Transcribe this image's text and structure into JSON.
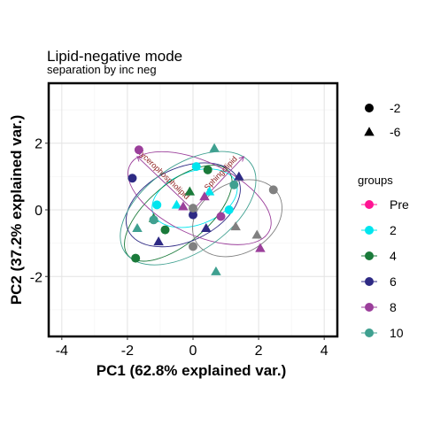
{
  "chart_data": {
    "type": "scatter",
    "title": "Lipid-negative mode",
    "subtitle": "separation by inc neg",
    "xlabel": "PC1 (62.8% explained var.)",
    "ylabel": "PC2 (37.2% explained var.)",
    "xlim": [
      -4.4,
      4.4
    ],
    "ylim": [
      -3.8,
      3.8
    ],
    "xticks": [
      "-4",
      "-2",
      "0",
      "2",
      "4"
    ],
    "xtick_values": [
      -4,
      -2,
      0,
      2,
      4
    ],
    "yticks": [
      "-2",
      "0",
      "2"
    ],
    "ytick_values": [
      -2,
      0,
      2
    ],
    "grid": true,
    "legend_position": "right",
    "shape_legend": [
      {
        "label": "-2",
        "shape": "circle"
      },
      {
        "label": "-6",
        "shape": "triangle"
      }
    ],
    "color_legend_title": "groups",
    "groups": [
      {
        "name": "Pre",
        "color": "#ff1493"
      },
      {
        "name": "2",
        "color": "#00e5ee"
      },
      {
        "name": "4",
        "color": "#1a7a3a"
      },
      {
        "name": "6",
        "color": "#2e2a84"
      },
      {
        "name": "8",
        "color": "#9b3f9b"
      },
      {
        "name": "10",
        "color": "#3fa090"
      }
    ],
    "unlabeled_color": "#808080",
    "points": [
      {
        "group": "2",
        "shape": "circle",
        "x": 0.1,
        "y": 1.3
      },
      {
        "group": "2",
        "shape": "triangle",
        "x": 0.5,
        "y": 0.55
      },
      {
        "group": "2",
        "shape": "circle",
        "x": 1.1,
        "y": 0.0
      },
      {
        "group": "2",
        "shape": "triangle",
        "x": -0.5,
        "y": 0.15
      },
      {
        "group": "2",
        "shape": "circle",
        "x": -1.1,
        "y": 0.15
      },
      {
        "group": "4",
        "shape": "circle",
        "x": 0.45,
        "y": 1.2
      },
      {
        "group": "4",
        "shape": "triangle",
        "x": -0.1,
        "y": 0.55
      },
      {
        "group": "4",
        "shape": "circle",
        "x": -0.85,
        "y": -0.6
      },
      {
        "group": "4",
        "shape": "triangle",
        "x": -1.2,
        "y": -0.25
      },
      {
        "group": "4",
        "shape": "circle",
        "x": -1.75,
        "y": -1.45
      },
      {
        "group": "6",
        "shape": "triangle",
        "x": 1.4,
        "y": 1.0
      },
      {
        "group": "6",
        "shape": "circle",
        "x": -1.85,
        "y": 0.95
      },
      {
        "group": "6",
        "shape": "circle",
        "x": 0.0,
        "y": -0.15
      },
      {
        "group": "6",
        "shape": "triangle",
        "x": 0.4,
        "y": -0.55
      },
      {
        "group": "6",
        "shape": "triangle",
        "x": -1.05,
        "y": -0.95
      },
      {
        "group": "8",
        "shape": "circle",
        "x": -1.65,
        "y": 1.8
      },
      {
        "group": "8",
        "shape": "triangle",
        "x": 0.35,
        "y": 0.4
      },
      {
        "group": "8",
        "shape": "triangle",
        "x": -0.3,
        "y": 0.1
      },
      {
        "group": "8",
        "shape": "circle",
        "x": 0.85,
        "y": -0.2
      },
      {
        "group": "8",
        "shape": "triangle",
        "x": 2.05,
        "y": -1.15
      },
      {
        "group": "10",
        "shape": "triangle",
        "x": 0.65,
        "y": 1.85
      },
      {
        "group": "10",
        "shape": "circle",
        "x": 1.25,
        "y": 0.75
      },
      {
        "group": "10",
        "shape": "circle",
        "x": -1.2,
        "y": -0.3
      },
      {
        "group": "10",
        "shape": "triangle",
        "x": -1.7,
        "y": -0.55
      },
      {
        "group": "10",
        "shape": "triangle",
        "x": 0.7,
        "y": -1.85
      },
      {
        "group": "unlabeled",
        "shape": "circle",
        "x": 2.45,
        "y": 0.6
      },
      {
        "group": "unlabeled",
        "shape": "circle",
        "x": 0.0,
        "y": 0.05
      },
      {
        "group": "unlabeled",
        "shape": "circle",
        "x": 0.0,
        "y": -1.1
      },
      {
        "group": "unlabeled",
        "shape": "triangle",
        "x": 1.3,
        "y": -0.5
      },
      {
        "group": "unlabeled",
        "shape": "triangle",
        "x": 1.95,
        "y": -0.75
      }
    ],
    "ellipses": [
      {
        "group": "2",
        "cx": 0.05,
        "cy": 0.35,
        "rx": 1.35,
        "ry": 0.8,
        "angle": 20
      },
      {
        "group": "4",
        "cx": -0.45,
        "cy": -0.1,
        "rx": 2.0,
        "ry": 0.9,
        "angle": 40
      },
      {
        "group": "6",
        "cx": -0.3,
        "cy": 0.15,
        "rx": 1.85,
        "ry": 1.1,
        "angle": 25
      },
      {
        "group": "8",
        "cx": 0.2,
        "cy": 0.35,
        "rx": 2.35,
        "ry": 1.1,
        "angle": -25
      },
      {
        "group": "10",
        "cx": -0.15,
        "cy": 0.05,
        "rx": 2.35,
        "ry": 1.3,
        "angle": 35
      },
      {
        "group": "unlabeled",
        "cx": 1.35,
        "cy": -0.25,
        "rx": 1.45,
        "ry": 1.05,
        "angle": 30
      }
    ],
    "loadings": [
      {
        "label": "Glycerophospholipid",
        "x": -1.7,
        "y": 1.6,
        "color": "#8b1a1a"
      },
      {
        "label": "Sphingolipid",
        "x": 1.55,
        "y": 1.6,
        "color": "#8b1a1a"
      }
    ],
    "loading_arrow_color": "#9b3f9b"
  }
}
